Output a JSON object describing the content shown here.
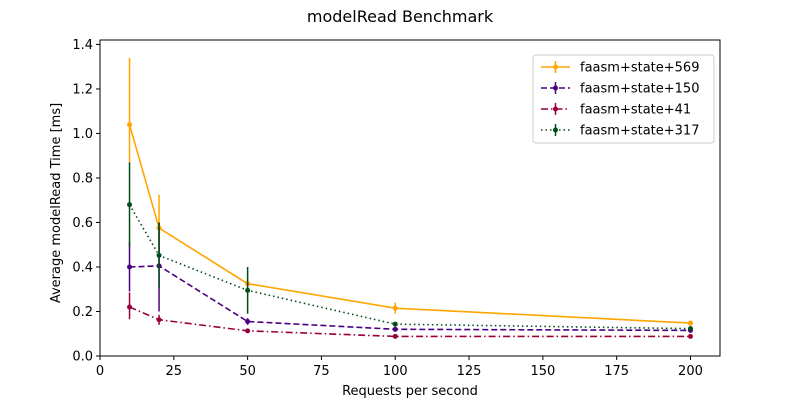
{
  "chart_data": {
    "type": "line",
    "title": "modelRead Benchmark",
    "xlabel": "Requests per second",
    "ylabel": "Average modelRead Time [ms]",
    "xlim": [
      0,
      210
    ],
    "ylim": [
      0,
      1.42
    ],
    "x_ticks": [
      0,
      25,
      50,
      75,
      100,
      125,
      150,
      175,
      200
    ],
    "y_ticks": [
      0.0,
      0.2,
      0.4,
      0.6,
      0.8,
      1.0,
      1.2,
      1.4
    ],
    "x_tick_labels": [
      "0",
      "25",
      "50",
      "75",
      "100",
      "125",
      "150",
      "175",
      "200"
    ],
    "y_tick_labels": [
      "0.0",
      "0.2",
      "0.4",
      "0.6",
      "0.8",
      "1.0",
      "1.2",
      "1.4"
    ],
    "grid": false,
    "legend_position": "top-right",
    "series": [
      {
        "name": "faasm+state+569",
        "color": "#ffa500",
        "style": "solid",
        "marker": "circle",
        "x": [
          10,
          20,
          50,
          100,
          200
        ],
        "y": [
          1.04,
          0.575,
          0.325,
          0.215,
          0.148
        ],
        "err_low": [
          0.87,
          0.43,
          0.3,
          0.19,
          0.135
        ],
        "err_high": [
          1.34,
          0.725,
          0.35,
          0.24,
          0.16
        ]
      },
      {
        "name": "faasm+state+150",
        "color": "#4b0082",
        "style": "dashed",
        "marker": "circle",
        "x": [
          10,
          20,
          50,
          100,
          200
        ],
        "y": [
          0.4,
          0.405,
          0.155,
          0.12,
          0.115
        ],
        "err_low": [
          0.29,
          0.2,
          0.14,
          0.11,
          0.105
        ],
        "err_high": [
          0.51,
          0.6,
          0.17,
          0.13,
          0.125
        ]
      },
      {
        "name": "faasm+state+41",
        "color": "#99003d",
        "style": "dashdot",
        "marker": "circle",
        "x": [
          10,
          20,
          50,
          100,
          200
        ],
        "y": [
          0.22,
          0.163,
          0.113,
          0.088,
          0.088
        ],
        "err_low": [
          0.165,
          0.14,
          0.105,
          0.082,
          0.082
        ],
        "err_high": [
          0.285,
          0.185,
          0.12,
          0.094,
          0.094
        ]
      },
      {
        "name": "faasm+state+317",
        "color": "#004d1a",
        "style": "dotted",
        "marker": "circle",
        "x": [
          10,
          20,
          50,
          100,
          200
        ],
        "y": [
          0.68,
          0.452,
          0.295,
          0.143,
          0.123
        ],
        "err_low": [
          0.49,
          0.305,
          0.19,
          0.133,
          0.113
        ],
        "err_high": [
          0.87,
          0.6,
          0.4,
          0.153,
          0.133
        ]
      }
    ]
  }
}
